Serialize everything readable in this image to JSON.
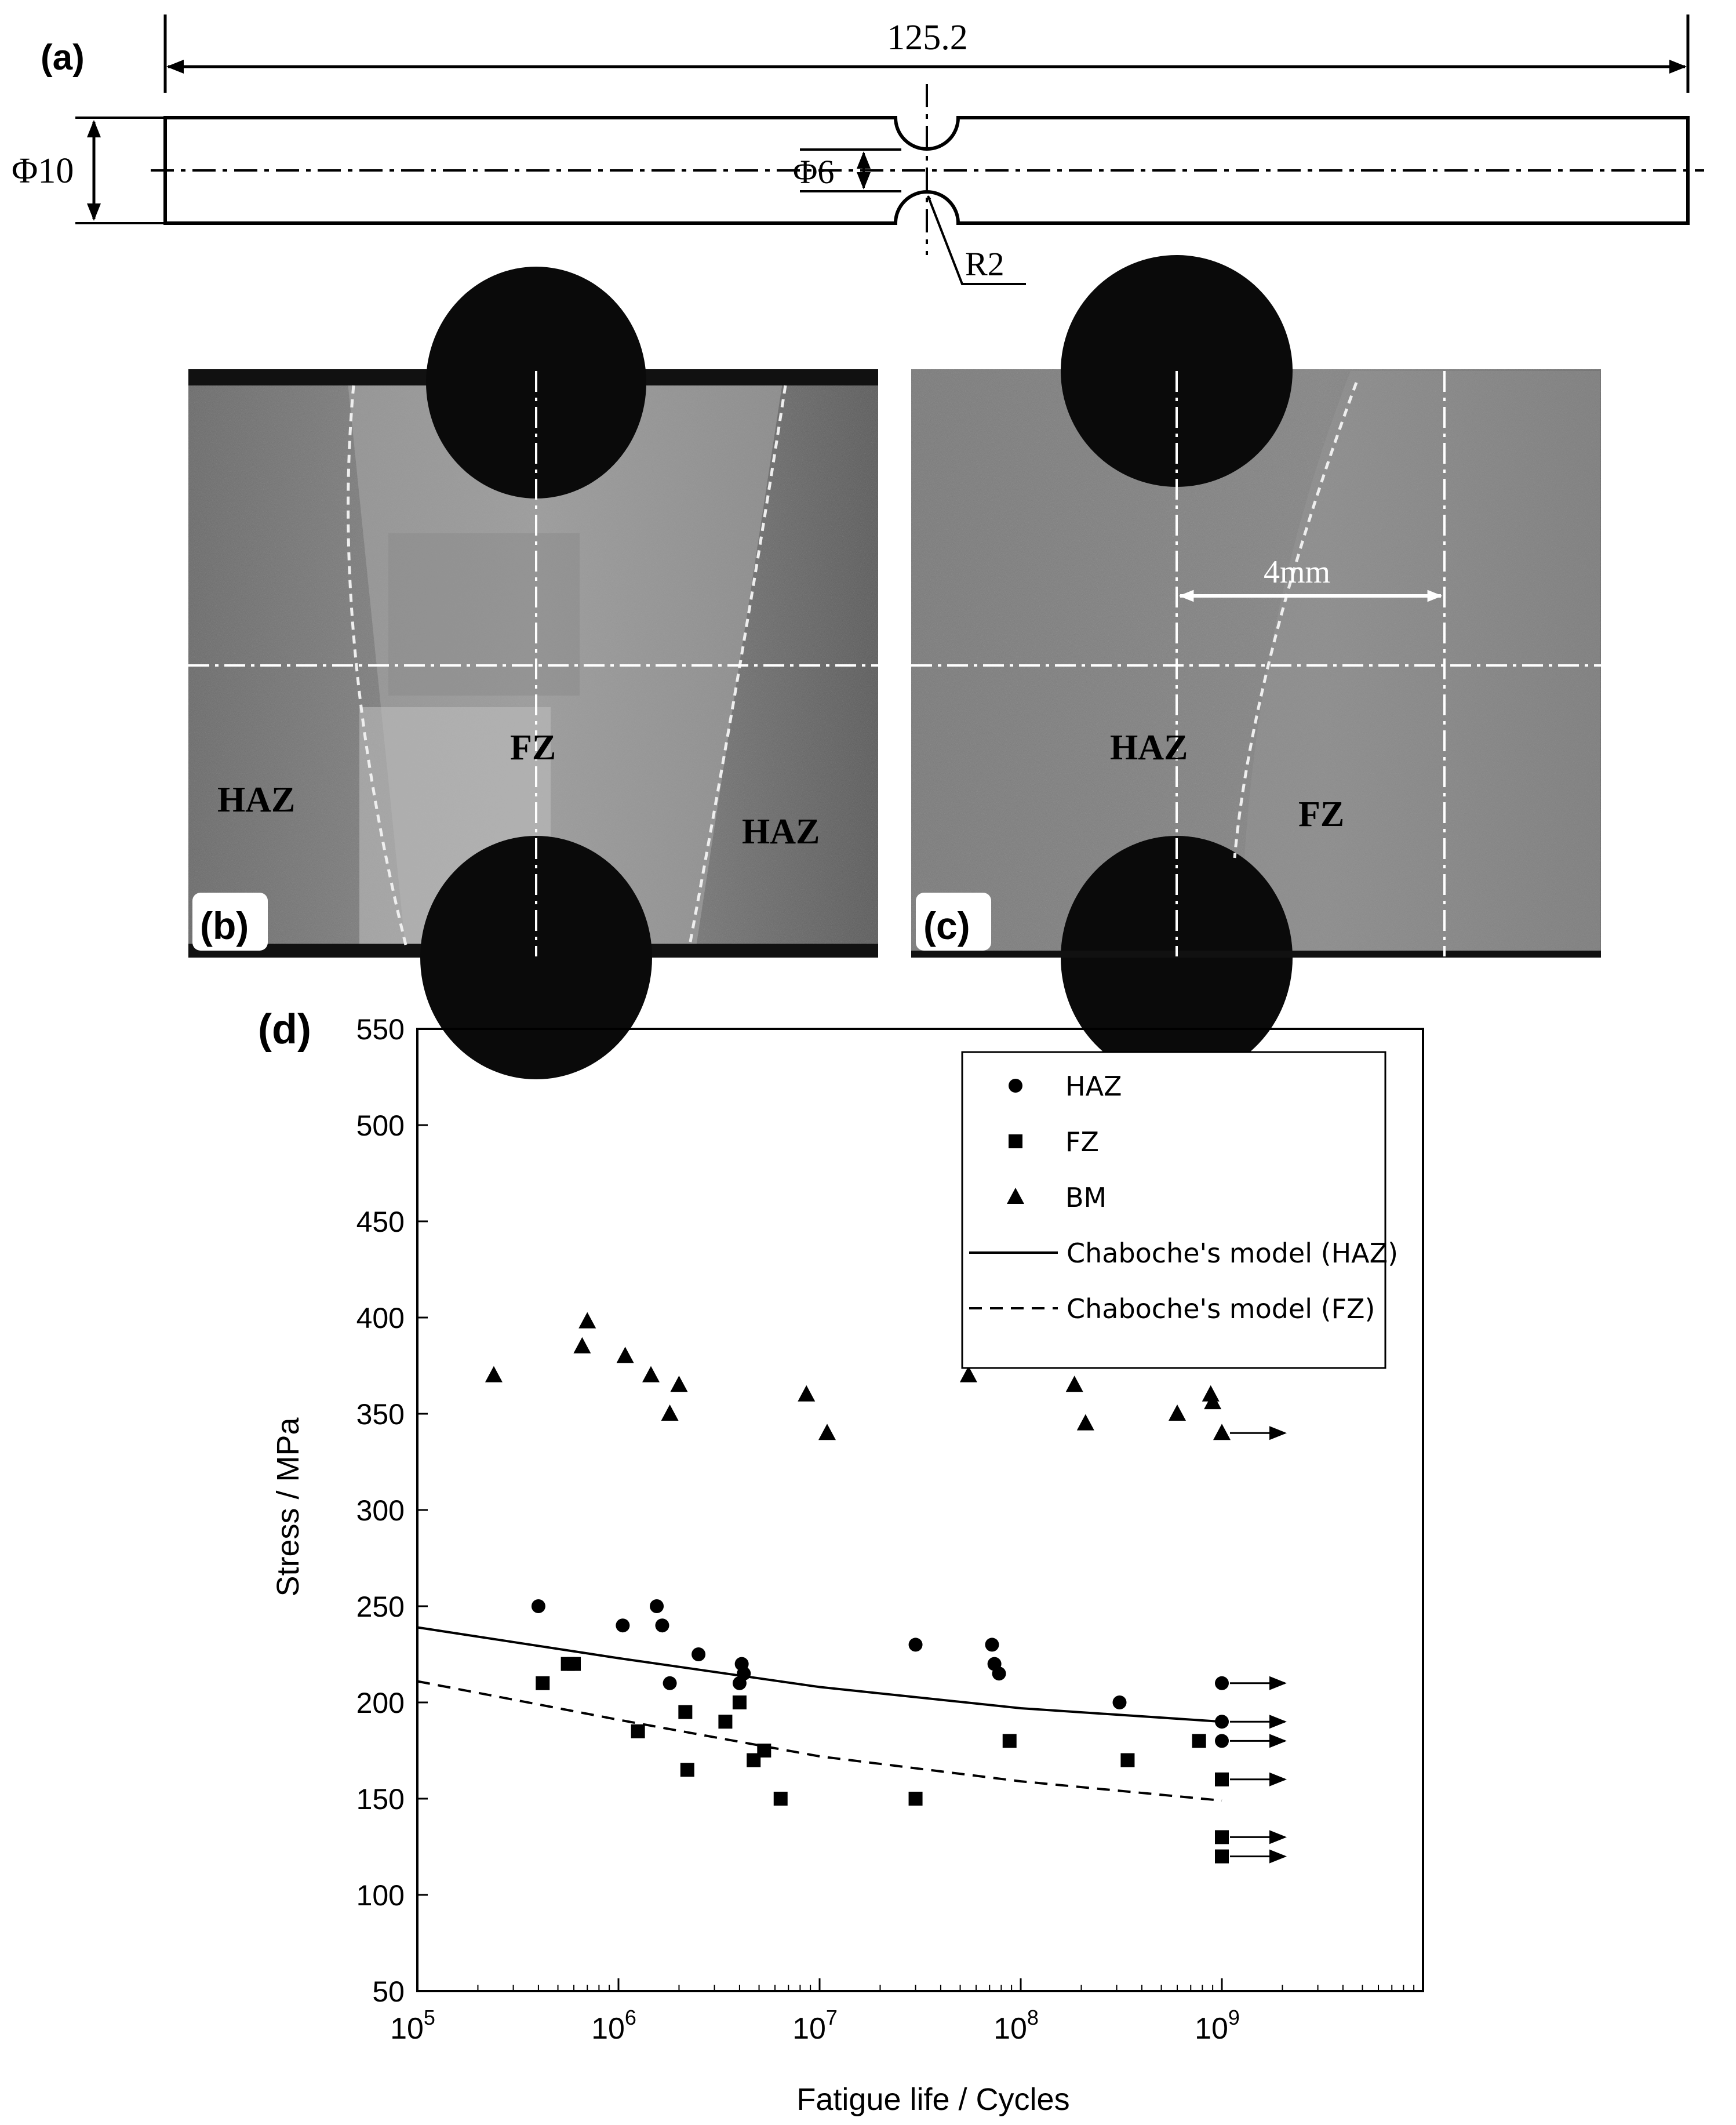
{
  "panel_a": {
    "label": "(a)",
    "length": "125.2",
    "diameter_outer": "Φ10",
    "diameter_notch": "Φ6",
    "radius": "R2"
  },
  "panel_b": {
    "label": "(b)",
    "zone_left": "HAZ",
    "zone_center": "FZ",
    "zone_right": "HAZ"
  },
  "panel_c": {
    "label": "(c)",
    "scale": "4mm",
    "zone_left": "HAZ",
    "zone_right": "FZ"
  },
  "panel_d": {
    "label": "(d)"
  },
  "chart_data": {
    "type": "scatter",
    "xlabel": "Fatigue life / Cycles",
    "ylabel": "Stress / MPa",
    "x_scale": "log",
    "xlim": [
      100000,
      10000000000
    ],
    "ylim": [
      50,
      550
    ],
    "x_ticks": [
      {
        "value": 100000,
        "base": "10",
        "exp": "5"
      },
      {
        "value": 1000000,
        "base": "10",
        "exp": "6"
      },
      {
        "value": 10000000,
        "base": "10",
        "exp": "7"
      },
      {
        "value": 100000000,
        "base": "10",
        "exp": "8"
      },
      {
        "value": 1000000000,
        "base": "10",
        "exp": "9"
      }
    ],
    "y_ticks": [
      "50",
      "100",
      "150",
      "200",
      "250",
      "300",
      "350",
      "400",
      "450",
      "500",
      "550"
    ],
    "grid": false,
    "legend_position": "top-right",
    "legend": [
      {
        "name": "HAZ",
        "marker": "circle"
      },
      {
        "name": "FZ",
        "marker": "square"
      },
      {
        "name": "BM",
        "marker": "triangle"
      },
      {
        "name": "Chaboche's model (HAZ)",
        "line": "solid"
      },
      {
        "name": "Chaboche's model (FZ)",
        "line": "dashed"
      }
    ],
    "series": [
      {
        "name": "HAZ",
        "marker": "circle",
        "points": [
          [
            400000,
            250
          ],
          [
            1050000,
            240
          ],
          [
            1550000,
            250
          ],
          [
            1650000,
            240
          ],
          [
            1800000,
            210
          ],
          [
            2500000,
            225
          ],
          [
            4000000,
            210
          ],
          [
            4100000,
            220
          ],
          [
            4200000,
            215
          ],
          [
            30000000,
            230
          ],
          [
            72000000,
            230
          ],
          [
            74000000,
            220
          ],
          [
            78000000,
            215
          ],
          [
            310000000,
            200
          ],
          [
            1000000000,
            210
          ],
          [
            1000000000,
            190
          ],
          [
            1000000000,
            180
          ]
        ],
        "runouts": [
          [
            1000000000,
            210
          ],
          [
            1000000000,
            190
          ],
          [
            1000000000,
            180
          ]
        ]
      },
      {
        "name": "FZ",
        "marker": "square",
        "points": [
          [
            420000,
            210
          ],
          [
            560000,
            220
          ],
          [
            600000,
            220
          ],
          [
            1250000,
            185
          ],
          [
            2150000,
            195
          ],
          [
            2200000,
            165
          ],
          [
            3400000,
            190
          ],
          [
            4000000,
            200
          ],
          [
            4700000,
            170
          ],
          [
            5300000,
            175
          ],
          [
            6400000,
            150
          ],
          [
            30000000,
            150
          ],
          [
            88000000,
            180
          ],
          [
            340000000,
            170
          ],
          [
            770000000,
            180
          ],
          [
            1000000000,
            160
          ],
          [
            1000000000,
            130
          ],
          [
            1000000000,
            120
          ]
        ],
        "runouts": [
          [
            1000000000,
            160
          ],
          [
            1000000000,
            130
          ],
          [
            1000000000,
            120
          ]
        ]
      },
      {
        "name": "BM",
        "marker": "triangle",
        "points": [
          [
            240000,
            370
          ],
          [
            660000,
            385
          ],
          [
            700000,
            398
          ],
          [
            1080000,
            380
          ],
          [
            1450000,
            370
          ],
          [
            1800000,
            350
          ],
          [
            2000000,
            365
          ],
          [
            8600000,
            360
          ],
          [
            10900000,
            340
          ],
          [
            55000000,
            370
          ],
          [
            185000000,
            365
          ],
          [
            210000000,
            345
          ],
          [
            600000000,
            350
          ],
          [
            880000000,
            360
          ],
          [
            900000000,
            356
          ],
          [
            1000000000,
            340
          ]
        ],
        "runouts": [
          [
            1000000000,
            340
          ]
        ]
      },
      {
        "name": "Chaboche's model (HAZ)",
        "line": "solid",
        "points": [
          [
            100000,
            239
          ],
          [
            1000000,
            223
          ],
          [
            10000000,
            208
          ],
          [
            100000000,
            197
          ],
          [
            1000000000,
            190
          ]
        ]
      },
      {
        "name": "Chaboche's model (FZ)",
        "line": "dashed",
        "points": [
          [
            100000,
            211
          ],
          [
            1000000,
            191
          ],
          [
            10000000,
            172
          ],
          [
            100000000,
            159
          ],
          [
            1000000000,
            149
          ]
        ]
      }
    ]
  }
}
